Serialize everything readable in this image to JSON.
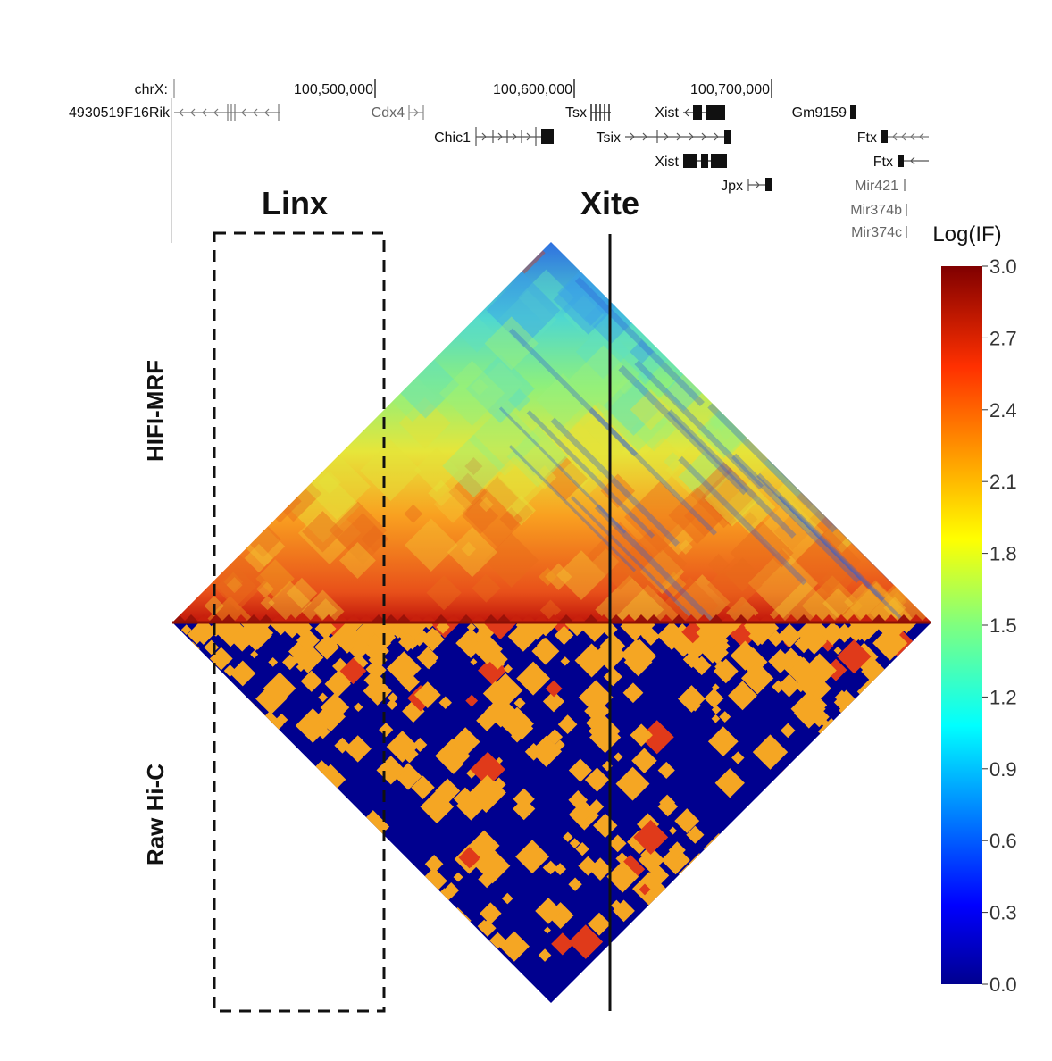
{
  "track": {
    "chrom_label": "chrX:",
    "coordinates": [
      "100,500,000",
      "100,600,000",
      "100,700,000"
    ],
    "genes": [
      {
        "label": "4930519F16Rik",
        "grey": false
      },
      {
        "label": "Cdx4",
        "grey": true
      },
      {
        "label": "Chic1",
        "grey": false
      },
      {
        "label": "Tsx",
        "grey": false
      },
      {
        "label": "Tsix",
        "grey": false
      },
      {
        "label": "Xist",
        "grey": false
      },
      {
        "label": "Xist",
        "grey": false
      },
      {
        "label": "Jpx",
        "grey": false
      },
      {
        "label": "Gm9159",
        "grey": false
      },
      {
        "label": "Ftx",
        "grey": false
      },
      {
        "label": "Ftx",
        "grey": false
      },
      {
        "label": "Mir421",
        "grey": true
      },
      {
        "label": "Mir374b",
        "grey": true
      },
      {
        "label": "Mir374c",
        "grey": true
      }
    ]
  },
  "regions": {
    "linx": "Linx",
    "xite": "Xite"
  },
  "panels": {
    "top": "HIFI-MRF",
    "bottom": "Raw Hi-C"
  },
  "colorbar": {
    "title": "Log(IF)",
    "ticks": [
      "3.0",
      "2.7",
      "2.4",
      "2.1",
      "1.8",
      "1.5",
      "1.2",
      "0.9",
      "0.6",
      "0.3",
      "0.0"
    ],
    "min": 0.0,
    "max": 3.0,
    "colormap": "jet"
  },
  "colors": {
    "low": "#00008f",
    "raw_contact": "#f5a623",
    "text": "#111111"
  }
}
